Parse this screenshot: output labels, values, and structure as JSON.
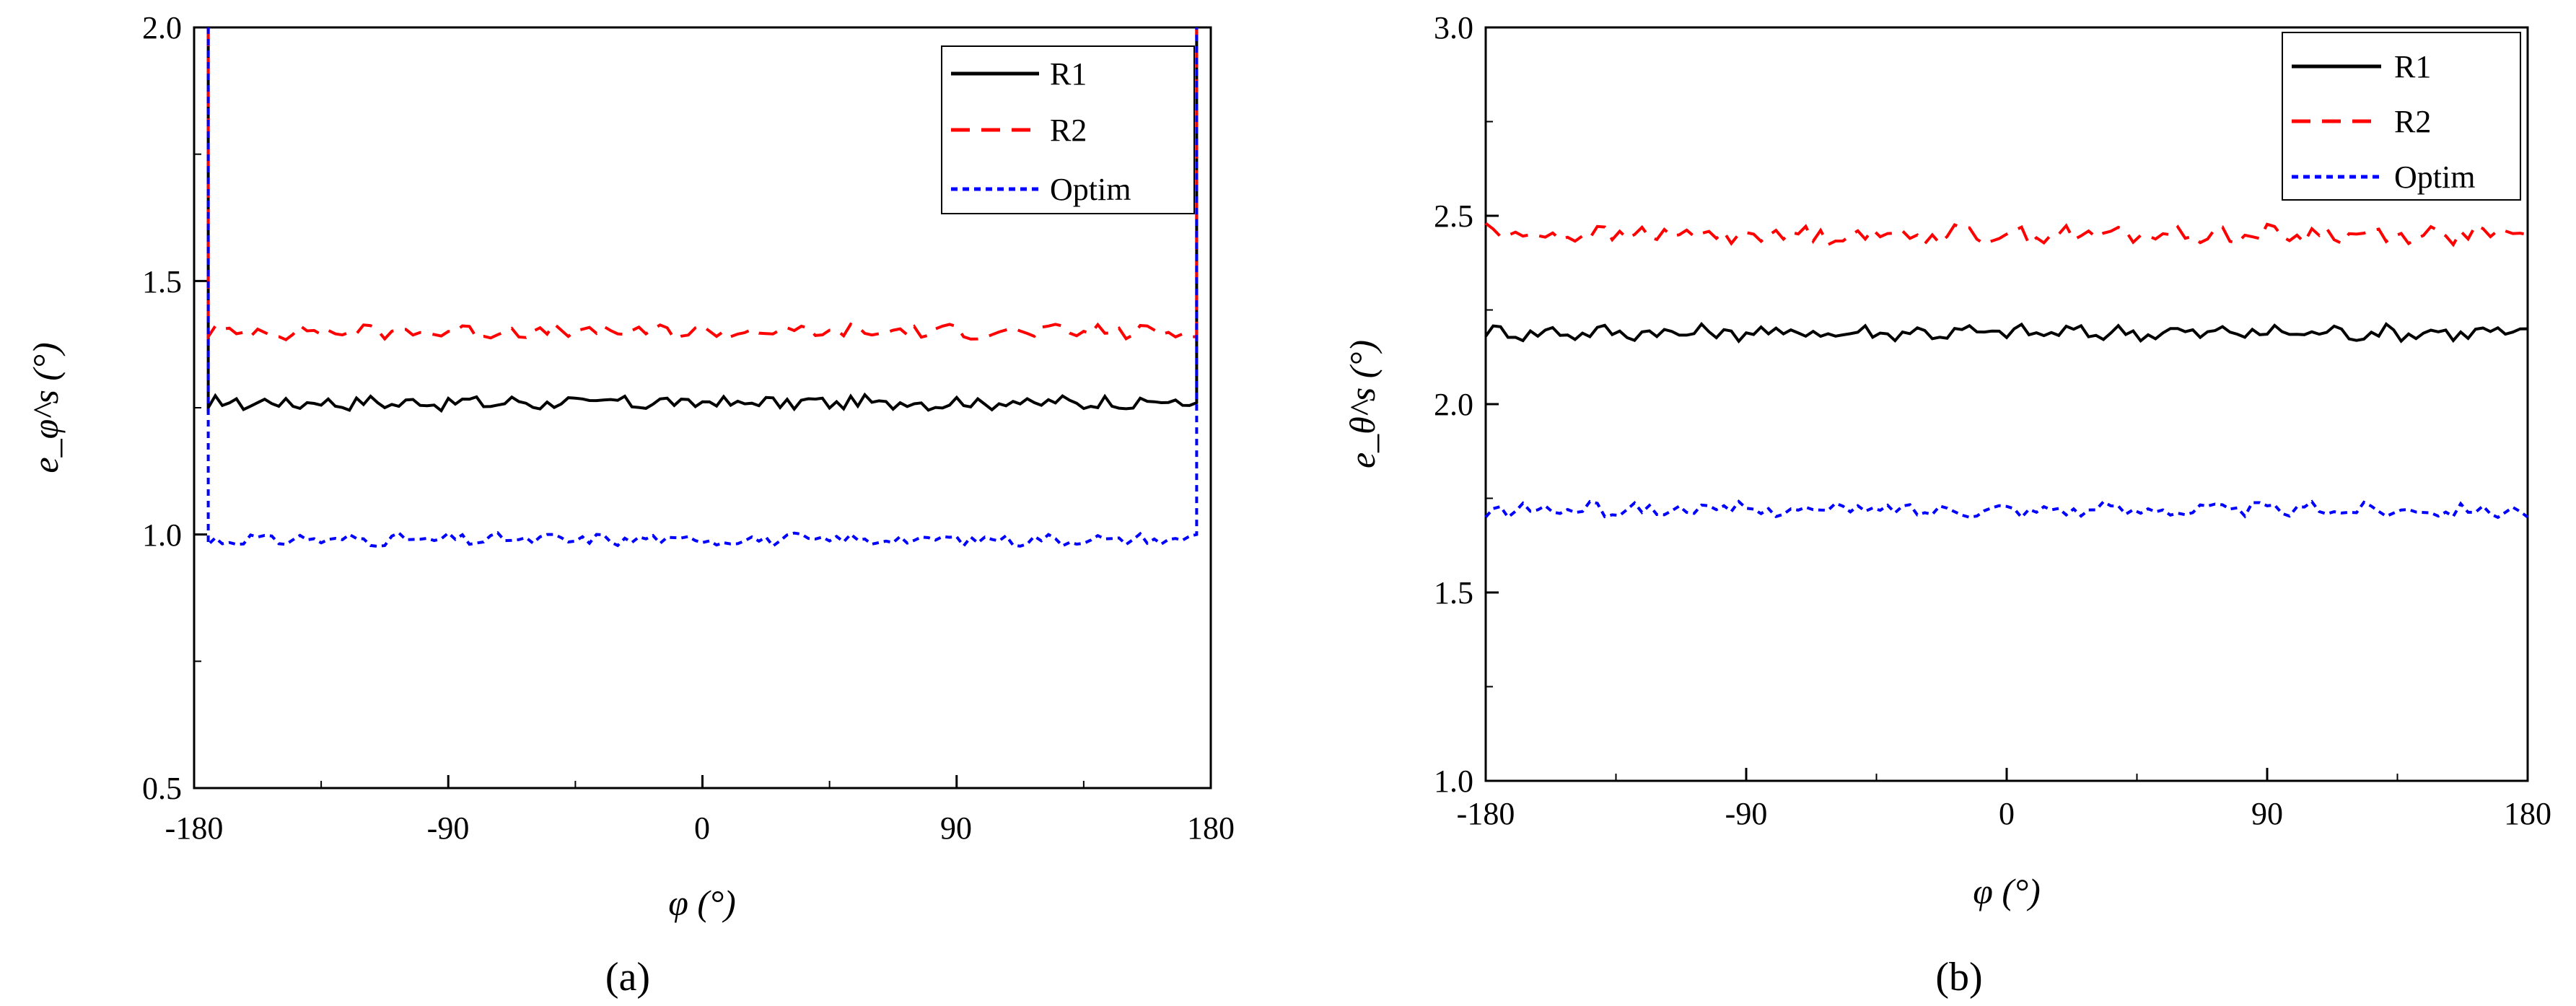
{
  "figure": {
    "panel_labels": [
      "(a)",
      "(b)"
    ]
  },
  "chart_data": [
    {
      "type": "line",
      "panel": "(a)",
      "title": "",
      "xlabel": "φ (°)",
      "ylabel": "e_φ^s (°)",
      "xlim": [
        -180,
        180
      ],
      "ylim": [
        0.5,
        2.0
      ],
      "xticks": [
        -180,
        -90,
        0,
        90,
        180
      ],
      "xtick_labels": [
        "-180",
        "-90",
        "0",
        "90",
        "180"
      ],
      "yticks": [
        0.5,
        1.0,
        1.5,
        2.0
      ],
      "ytick_labels": [
        "0.5",
        "1.0",
        "1.5",
        "2.0"
      ],
      "legend_position": "top-right",
      "edge_spikes": true,
      "series": [
        {
          "name": "R1",
          "color": "#000000",
          "style": "solid",
          "mean": 1.26,
          "noise": 0.012,
          "x": [
            -175,
            175
          ],
          "start_value": 1.25,
          "end_value": 1.26
        },
        {
          "name": "R2",
          "color": "#ff0000",
          "style": "dashed",
          "mean": 1.4,
          "noise": 0.012,
          "x": [
            -175,
            175
          ],
          "start_value": 1.39,
          "end_value": 1.39
        },
        {
          "name": "Optim",
          "color": "#0000ff",
          "style": "dotted",
          "mean": 0.99,
          "noise": 0.01,
          "x": [
            -175,
            175
          ],
          "start_value": 0.98,
          "end_value": 1.0
        }
      ]
    },
    {
      "type": "line",
      "panel": "(b)",
      "title": "",
      "xlabel": "φ (°)",
      "ylabel": "e_θ^s (°)",
      "xlim": [
        -180,
        180
      ],
      "ylim": [
        1.0,
        3.0
      ],
      "xticks": [
        -180,
        -90,
        0,
        90,
        180
      ],
      "xtick_labels": [
        "-180",
        "-90",
        "0",
        "90",
        "180"
      ],
      "yticks": [
        1.0,
        1.5,
        2.0,
        2.5,
        3.0
      ],
      "ytick_labels": [
        "1.0",
        "1.5",
        "2.0",
        "2.5",
        "3.0"
      ],
      "legend_position": "top-right",
      "edge_spikes": false,
      "series": [
        {
          "name": "R1",
          "color": "#000000",
          "style": "solid",
          "mean": 2.19,
          "noise": 0.018,
          "x": [
            -180,
            180
          ],
          "start_value": 2.18,
          "end_value": 2.2
        },
        {
          "name": "R2",
          "color": "#ff0000",
          "style": "dashed",
          "mean": 2.45,
          "noise": 0.02,
          "x": [
            -180,
            180
          ],
          "start_value": 2.48,
          "end_value": 2.45
        },
        {
          "name": "Optim",
          "color": "#0000ff",
          "style": "dotted",
          "mean": 1.72,
          "noise": 0.016,
          "x": [
            -180,
            180
          ],
          "start_value": 1.7,
          "end_value": 1.7
        }
      ]
    }
  ]
}
